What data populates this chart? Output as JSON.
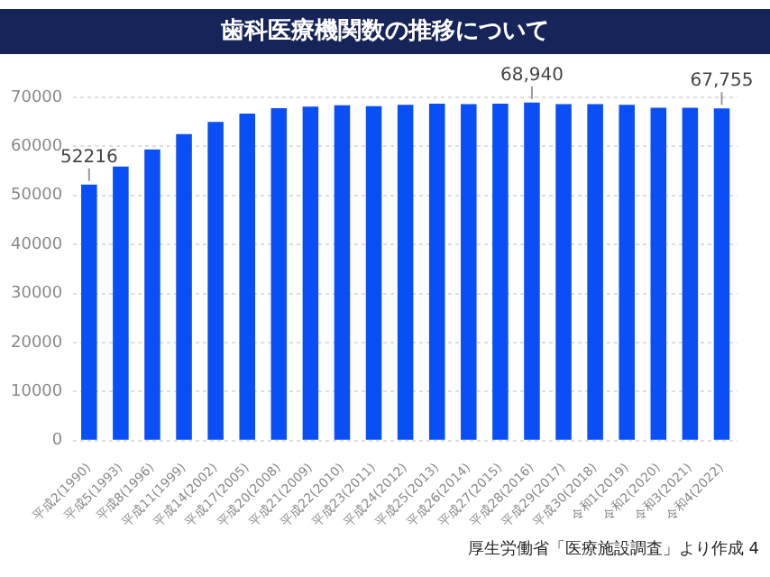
{
  "chart_data": {
    "type": "bar",
    "title": "歯科医療機関数の推移について",
    "categories": [
      "平成2(1990)",
      "平成5(1993)",
      "平成8(1996)",
      "平成11(1999)",
      "平成14(2002)",
      "平成17(2005)",
      "平成20(2008)",
      "平成21(2009)",
      "平成22(2010)",
      "平成23(2011)",
      "平成24(2012)",
      "平成25(2013)",
      "平成26(2014)",
      "平成27(2015)",
      "平成28(2016)",
      "平成29(2017)",
      "平成30(2018)",
      "令和1(2019)",
      "令和2(2020)",
      "令和3(2021)",
      "令和4(2022)"
    ],
    "values": [
      52216,
      55900,
      59400,
      62500,
      65000,
      66700,
      67800,
      68100,
      68400,
      68200,
      68500,
      68700,
      68600,
      68700,
      68940,
      68600,
      68600,
      68500,
      67900,
      67900,
      67755
    ],
    "value_labels": [
      "52216",
      null,
      null,
      null,
      null,
      null,
      null,
      null,
      null,
      null,
      null,
      null,
      null,
      null,
      "68,940",
      null,
      null,
      null,
      null,
      null,
      "67,755"
    ],
    "color": "#0a4ff5",
    "ylim": [
      0,
      70000
    ],
    "yticks": [
      0,
      10000,
      20000,
      30000,
      40000,
      50000,
      60000,
      70000
    ],
    "grid": "y",
    "annotations": [
      "厚生労働省「医療施設調査」より作成 4"
    ]
  }
}
